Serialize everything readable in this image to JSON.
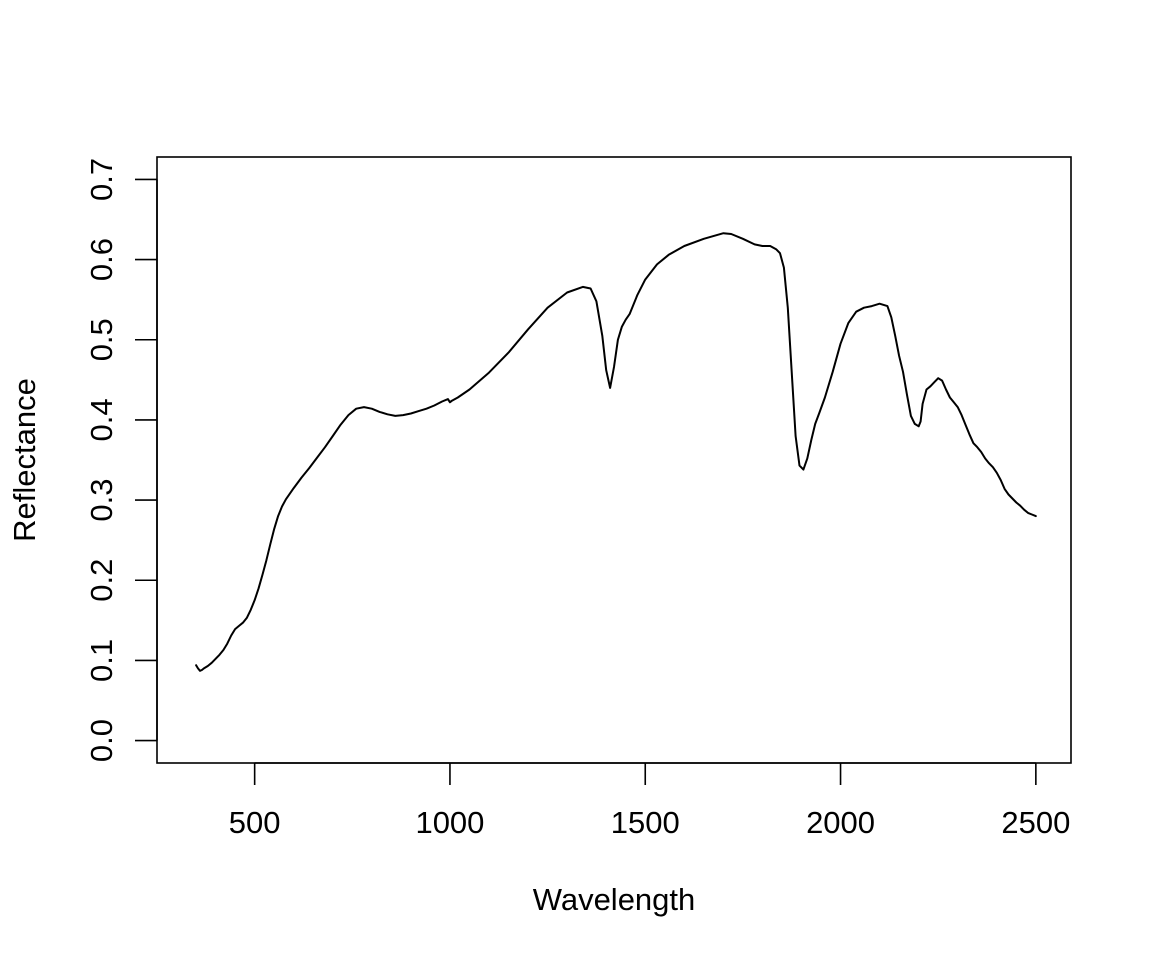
{
  "chart_data": {
    "type": "line",
    "title": "",
    "xlabel": "Wavelength",
    "ylabel": "Reflectance",
    "xlim": [
      250,
      2590
    ],
    "ylim": [
      -0.028,
      0.728
    ],
    "x_ticks": [
      500,
      1000,
      1500,
      2000,
      2500
    ],
    "x_tick_labels": [
      "500",
      "1000",
      "1500",
      "2000",
      "2500"
    ],
    "y_ticks": [
      0.0,
      0.1,
      0.2,
      0.3,
      0.4,
      0.5,
      0.6,
      0.7
    ],
    "y_tick_labels": [
      "0.0",
      "0.1",
      "0.2",
      "0.3",
      "0.4",
      "0.5",
      "0.6",
      "0.7"
    ],
    "grid": false,
    "line_color": "#000000",
    "series": [
      {
        "x": [
          350,
          355,
          360,
          365,
          370,
          380,
          390,
          400,
          410,
          420,
          430,
          440,
          450,
          460,
          470,
          480,
          490,
          500,
          510,
          520,
          530,
          540,
          550,
          560,
          570,
          580,
          590,
          600,
          620,
          640,
          660,
          680,
          700,
          720,
          740,
          760,
          780,
          800,
          820,
          840,
          860,
          880,
          900,
          920,
          940,
          960,
          980,
          995,
          1000,
          1005,
          1020,
          1050,
          1100,
          1150,
          1200,
          1250,
          1300,
          1340,
          1360,
          1375,
          1390,
          1400,
          1410,
          1420,
          1430,
          1440,
          1450,
          1460,
          1480,
          1500,
          1530,
          1560,
          1600,
          1650,
          1700,
          1720,
          1750,
          1780,
          1800,
          1820,
          1835,
          1845,
          1855,
          1865,
          1875,
          1885,
          1895,
          1905,
          1915,
          1925,
          1935,
          1945,
          1960,
          1980,
          2000,
          2020,
          2040,
          2060,
          2080,
          2100,
          2120,
          2130,
          2140,
          2150,
          2160,
          2170,
          2180,
          2190,
          2200,
          2205,
          2210,
          2220,
          2230,
          2240,
          2250,
          2260,
          2270,
          2280,
          2290,
          2300,
          2310,
          2320,
          2330,
          2340,
          2350,
          2360,
          2370,
          2380,
          2390,
          2400,
          2410,
          2420,
          2430,
          2440,
          2450,
          2460,
          2470,
          2480,
          2490,
          2500
        ],
        "y": [
          0.094,
          0.09,
          0.087,
          0.088,
          0.09,
          0.093,
          0.097,
          0.102,
          0.107,
          0.113,
          0.121,
          0.131,
          0.139,
          0.143,
          0.147,
          0.153,
          0.163,
          0.175,
          0.19,
          0.207,
          0.225,
          0.245,
          0.264,
          0.28,
          0.292,
          0.301,
          0.308,
          0.315,
          0.328,
          0.34,
          0.353,
          0.366,
          0.38,
          0.394,
          0.406,
          0.414,
          0.416,
          0.414,
          0.41,
          0.407,
          0.405,
          0.406,
          0.408,
          0.411,
          0.414,
          0.418,
          0.423,
          0.426,
          0.422,
          0.424,
          0.428,
          0.438,
          0.459,
          0.484,
          0.513,
          0.54,
          0.559,
          0.566,
          0.564,
          0.548,
          0.505,
          0.462,
          0.44,
          0.466,
          0.5,
          0.516,
          0.525,
          0.532,
          0.556,
          0.575,
          0.594,
          0.606,
          0.617,
          0.626,
          0.633,
          0.632,
          0.626,
          0.619,
          0.617,
          0.617,
          0.613,
          0.608,
          0.59,
          0.54,
          0.46,
          0.38,
          0.343,
          0.338,
          0.352,
          0.375,
          0.395,
          0.408,
          0.428,
          0.46,
          0.495,
          0.521,
          0.535,
          0.54,
          0.542,
          0.545,
          0.542,
          0.528,
          0.505,
          0.48,
          0.46,
          0.432,
          0.405,
          0.395,
          0.392,
          0.398,
          0.42,
          0.438,
          0.442,
          0.447,
          0.452,
          0.449,
          0.438,
          0.428,
          0.422,
          0.416,
          0.406,
          0.394,
          0.382,
          0.371,
          0.366,
          0.36,
          0.352,
          0.346,
          0.341,
          0.334,
          0.325,
          0.314,
          0.307,
          0.302,
          0.297,
          0.293,
          0.288,
          0.284,
          0.282,
          0.28
        ]
      }
    ]
  }
}
